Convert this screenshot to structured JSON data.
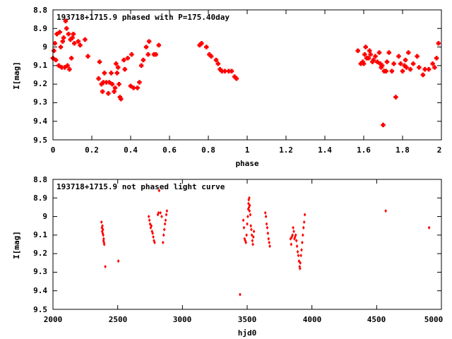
{
  "chart_data": [
    {
      "type": "scatter",
      "title": "193718+1715.9 phased with P=175.40day",
      "xlabel": "phase",
      "ylabel": "I[mag]",
      "xlim": [
        0,
        2
      ],
      "ylim": [
        8.8,
        9.5
      ],
      "y_inverted": true,
      "xticks": [
        0,
        0.2,
        0.4,
        0.6,
        0.8,
        1,
        1.2,
        1.4,
        1.6,
        1.8,
        2
      ],
      "xtick_labels": [
        "0",
        "0.2",
        "0.4",
        "0.6",
        "0.8",
        "1",
        "1.2",
        "1.4",
        "1.6",
        "1.8",
        "2"
      ],
      "yticks": [
        8.8,
        8.9,
        9,
        9.1,
        9.2,
        9.3,
        9.4,
        9.5
      ],
      "ytick_labels": [
        "8.8",
        "8.9",
        "9",
        "9.1",
        "9.2",
        "9.3",
        "9.4",
        "9.5"
      ],
      "grid": false,
      "marker_color": "#ff0000",
      "points": [
        [
          0.0,
          9.06
        ],
        [
          0.005,
          9.02
        ],
        [
          0.01,
          8.98
        ],
        [
          0.015,
          9.07
        ],
        [
          0.02,
          8.93
        ],
        [
          0.03,
          9.1
        ],
        [
          0.035,
          8.92
        ],
        [
          0.04,
          9.0
        ],
        [
          0.045,
          9.11
        ],
        [
          0.05,
          8.97
        ],
        [
          0.055,
          8.95
        ],
        [
          0.06,
          9.11
        ],
        [
          0.065,
          8.86
        ],
        [
          0.07,
          8.9
        ],
        [
          0.075,
          9.1
        ],
        [
          0.08,
          8.93
        ],
        [
          0.085,
          9.12
        ],
        [
          0.09,
          8.96
        ],
        [
          0.095,
          9.06
        ],
        [
          0.1,
          8.95
        ],
        [
          0.105,
          8.93
        ],
        [
          0.11,
          8.98
        ],
        [
          0.13,
          8.97
        ],
        [
          0.14,
          8.99
        ],
        [
          0.165,
          8.96
        ],
        [
          0.18,
          9.05
        ],
        [
          0.235,
          9.17
        ],
        [
          0.24,
          9.08
        ],
        [
          0.25,
          9.2
        ],
        [
          0.255,
          9.24
        ],
        [
          0.26,
          9.19
        ],
        [
          0.265,
          9.14
        ],
        [
          0.275,
          9.19
        ],
        [
          0.285,
          9.25
        ],
        [
          0.29,
          9.19
        ],
        [
          0.3,
          9.14
        ],
        [
          0.305,
          9.2
        ],
        [
          0.315,
          9.24
        ],
        [
          0.32,
          9.22
        ],
        [
          0.325,
          9.09
        ],
        [
          0.33,
          9.14
        ],
        [
          0.335,
          9.11
        ],
        [
          0.34,
          9.2
        ],
        [
          0.345,
          9.27
        ],
        [
          0.35,
          9.28
        ],
        [
          0.365,
          9.07
        ],
        [
          0.37,
          9.12
        ],
        [
          0.385,
          9.06
        ],
        [
          0.4,
          9.21
        ],
        [
          0.405,
          9.04
        ],
        [
          0.415,
          9.22
        ],
        [
          0.435,
          9.22
        ],
        [
          0.445,
          9.19
        ],
        [
          0.455,
          9.1
        ],
        [
          0.465,
          9.07
        ],
        [
          0.48,
          9.0
        ],
        [
          0.49,
          9.04
        ],
        [
          0.495,
          8.97
        ],
        [
          0.52,
          9.04
        ],
        [
          0.53,
          9.04
        ],
        [
          0.545,
          8.99
        ],
        [
          0.755,
          8.99
        ],
        [
          0.765,
          8.98
        ],
        [
          0.79,
          9.0
        ],
        [
          0.805,
          9.04
        ],
        [
          0.815,
          9.05
        ],
        [
          0.84,
          9.07
        ],
        [
          0.85,
          9.09
        ],
        [
          0.86,
          9.12
        ],
        [
          0.87,
          9.13
        ],
        [
          0.885,
          9.13
        ],
        [
          0.905,
          9.13
        ],
        [
          0.92,
          9.13
        ],
        [
          0.935,
          9.16
        ],
        [
          0.945,
          9.17
        ],
        [
          1.57,
          9.02
        ],
        [
          1.585,
          9.09
        ],
        [
          1.595,
          9.08
        ],
        [
          1.6,
          9.09
        ],
        [
          1.605,
          9.04
        ],
        [
          1.61,
          9.0
        ],
        [
          1.615,
          9.06
        ],
        [
          1.625,
          9.06
        ],
        [
          1.63,
          9.02
        ],
        [
          1.635,
          9.04
        ],
        [
          1.645,
          9.08
        ],
        [
          1.65,
          9.07
        ],
        [
          1.66,
          9.05
        ],
        [
          1.67,
          9.08
        ],
        [
          1.68,
          9.03
        ],
        [
          1.685,
          9.09
        ],
        [
          1.69,
          9.11
        ],
        [
          1.695,
          9.1
        ],
        [
          1.7,
          9.42
        ],
        [
          1.705,
          9.13
        ],
        [
          1.715,
          9.13
        ],
        [
          1.72,
          9.08
        ],
        [
          1.73,
          9.03
        ],
        [
          1.745,
          9.13
        ],
        [
          1.755,
          9.09
        ],
        [
          1.765,
          9.27
        ],
        [
          1.78,
          9.05
        ],
        [
          1.79,
          9.09
        ],
        [
          1.8,
          9.13
        ],
        [
          1.81,
          9.1
        ],
        [
          1.815,
          9.07
        ],
        [
          1.82,
          9.11
        ],
        [
          1.83,
          9.03
        ],
        [
          1.84,
          9.12
        ],
        [
          1.855,
          9.09
        ],
        [
          1.875,
          9.05
        ],
        [
          1.885,
          9.11
        ],
        [
          1.905,
          9.15
        ],
        [
          1.915,
          9.12
        ],
        [
          1.935,
          9.12
        ],
        [
          1.955,
          9.09
        ],
        [
          1.965,
          9.11
        ],
        [
          1.975,
          9.06
        ],
        [
          1.985,
          8.98
        ]
      ]
    },
    {
      "type": "scatter",
      "title": "193718+1715.9 not phased light curve",
      "xlabel": "hjd0",
      "ylabel": "I[mag]",
      "xlim": [
        2000,
        5000
      ],
      "ylim": [
        8.8,
        9.5
      ],
      "y_inverted": true,
      "xticks": [
        2000,
        2500,
        3000,
        3500,
        4000,
        4500,
        5000
      ],
      "xtick_labels": [
        "2000",
        "2500",
        "3000",
        "3500",
        "4000",
        "4500",
        "5000"
      ],
      "yticks": [
        8.8,
        8.9,
        9,
        9.1,
        9.2,
        9.3,
        9.4,
        9.5
      ],
      "ytick_labels": [
        "8.8",
        "8.9",
        "9",
        "9.1",
        "9.2",
        "9.3",
        "9.4",
        "9.5"
      ],
      "grid": false,
      "marker_color": "#ff0000",
      "points": [
        [
          2375,
          9.03
        ],
        [
          2378,
          9.06
        ],
        [
          2380,
          9.08
        ],
        [
          2382,
          9.05
        ],
        [
          2384,
          9.09
        ],
        [
          2386,
          9.07
        ],
        [
          2388,
          9.1
        ],
        [
          2390,
          9.13
        ],
        [
          2392,
          9.12
        ],
        [
          2394,
          9.14
        ],
        [
          2396,
          9.15
        ],
        [
          2404,
          9.27
        ],
        [
          2505,
          9.24
        ],
        [
          2740,
          9.0
        ],
        [
          2745,
          9.02
        ],
        [
          2750,
          9.04
        ],
        [
          2755,
          9.06
        ],
        [
          2760,
          9.05
        ],
        [
          2765,
          9.08
        ],
        [
          2770,
          9.09
        ],
        [
          2775,
          9.11
        ],
        [
          2780,
          9.13
        ],
        [
          2785,
          9.14
        ],
        [
          2810,
          8.99
        ],
        [
          2815,
          8.98
        ],
        [
          2820,
          8.86
        ],
        [
          2830,
          8.98
        ],
        [
          2840,
          9.0
        ],
        [
          2850,
          9.14
        ],
        [
          2855,
          9.1
        ],
        [
          2860,
          9.07
        ],
        [
          2865,
          9.04
        ],
        [
          2870,
          9.02
        ],
        [
          2875,
          8.99
        ],
        [
          2880,
          8.97
        ],
        [
          3445,
          9.42
        ],
        [
          3470,
          9.02
        ],
        [
          3475,
          9.06
        ],
        [
          3480,
          9.12
        ],
        [
          3485,
          9.13
        ],
        [
          3490,
          9.14
        ],
        [
          3495,
          9.1
        ],
        [
          3500,
          9.04
        ],
        [
          3505,
          9.0
        ],
        [
          3508,
          8.96
        ],
        [
          3510,
          8.93
        ],
        [
          3512,
          8.91
        ],
        [
          3514,
          8.95
        ],
        [
          3516,
          8.9
        ],
        [
          3518,
          8.97
        ],
        [
          3520,
          8.94
        ],
        [
          3524,
          8.99
        ],
        [
          3528,
          9.05
        ],
        [
          3532,
          9.07
        ],
        [
          3536,
          9.1
        ],
        [
          3540,
          9.13
        ],
        [
          3544,
          9.15
        ],
        [
          3548,
          9.11
        ],
        [
          3552,
          9.08
        ],
        [
          3640,
          8.98
        ],
        [
          3645,
          9.0
        ],
        [
          3650,
          9.04
        ],
        [
          3655,
          9.06
        ],
        [
          3660,
          9.09
        ],
        [
          3665,
          9.12
        ],
        [
          3670,
          9.14
        ],
        [
          3675,
          9.16
        ],
        [
          3835,
          9.12
        ],
        [
          3840,
          9.15
        ],
        [
          3845,
          9.11
        ],
        [
          3850,
          9.1
        ],
        [
          3855,
          9.06
        ],
        [
          3860,
          9.08
        ],
        [
          3865,
          9.12
        ],
        [
          3870,
          9.11
        ],
        [
          3875,
          9.1
        ],
        [
          3880,
          9.13
        ],
        [
          3885,
          9.16
        ],
        [
          3890,
          9.19
        ],
        [
          3895,
          9.21
        ],
        [
          3900,
          9.24
        ],
        [
          3905,
          9.27
        ],
        [
          3908,
          9.28
        ],
        [
          3910,
          9.25
        ],
        [
          3915,
          9.21
        ],
        [
          3920,
          9.18
        ],
        [
          3925,
          9.14
        ],
        [
          3930,
          9.1
        ],
        [
          3935,
          9.06
        ],
        [
          3940,
          9.03
        ],
        [
          3945,
          8.99
        ],
        [
          4570,
          8.97
        ],
        [
          4905,
          9.06
        ]
      ]
    }
  ]
}
